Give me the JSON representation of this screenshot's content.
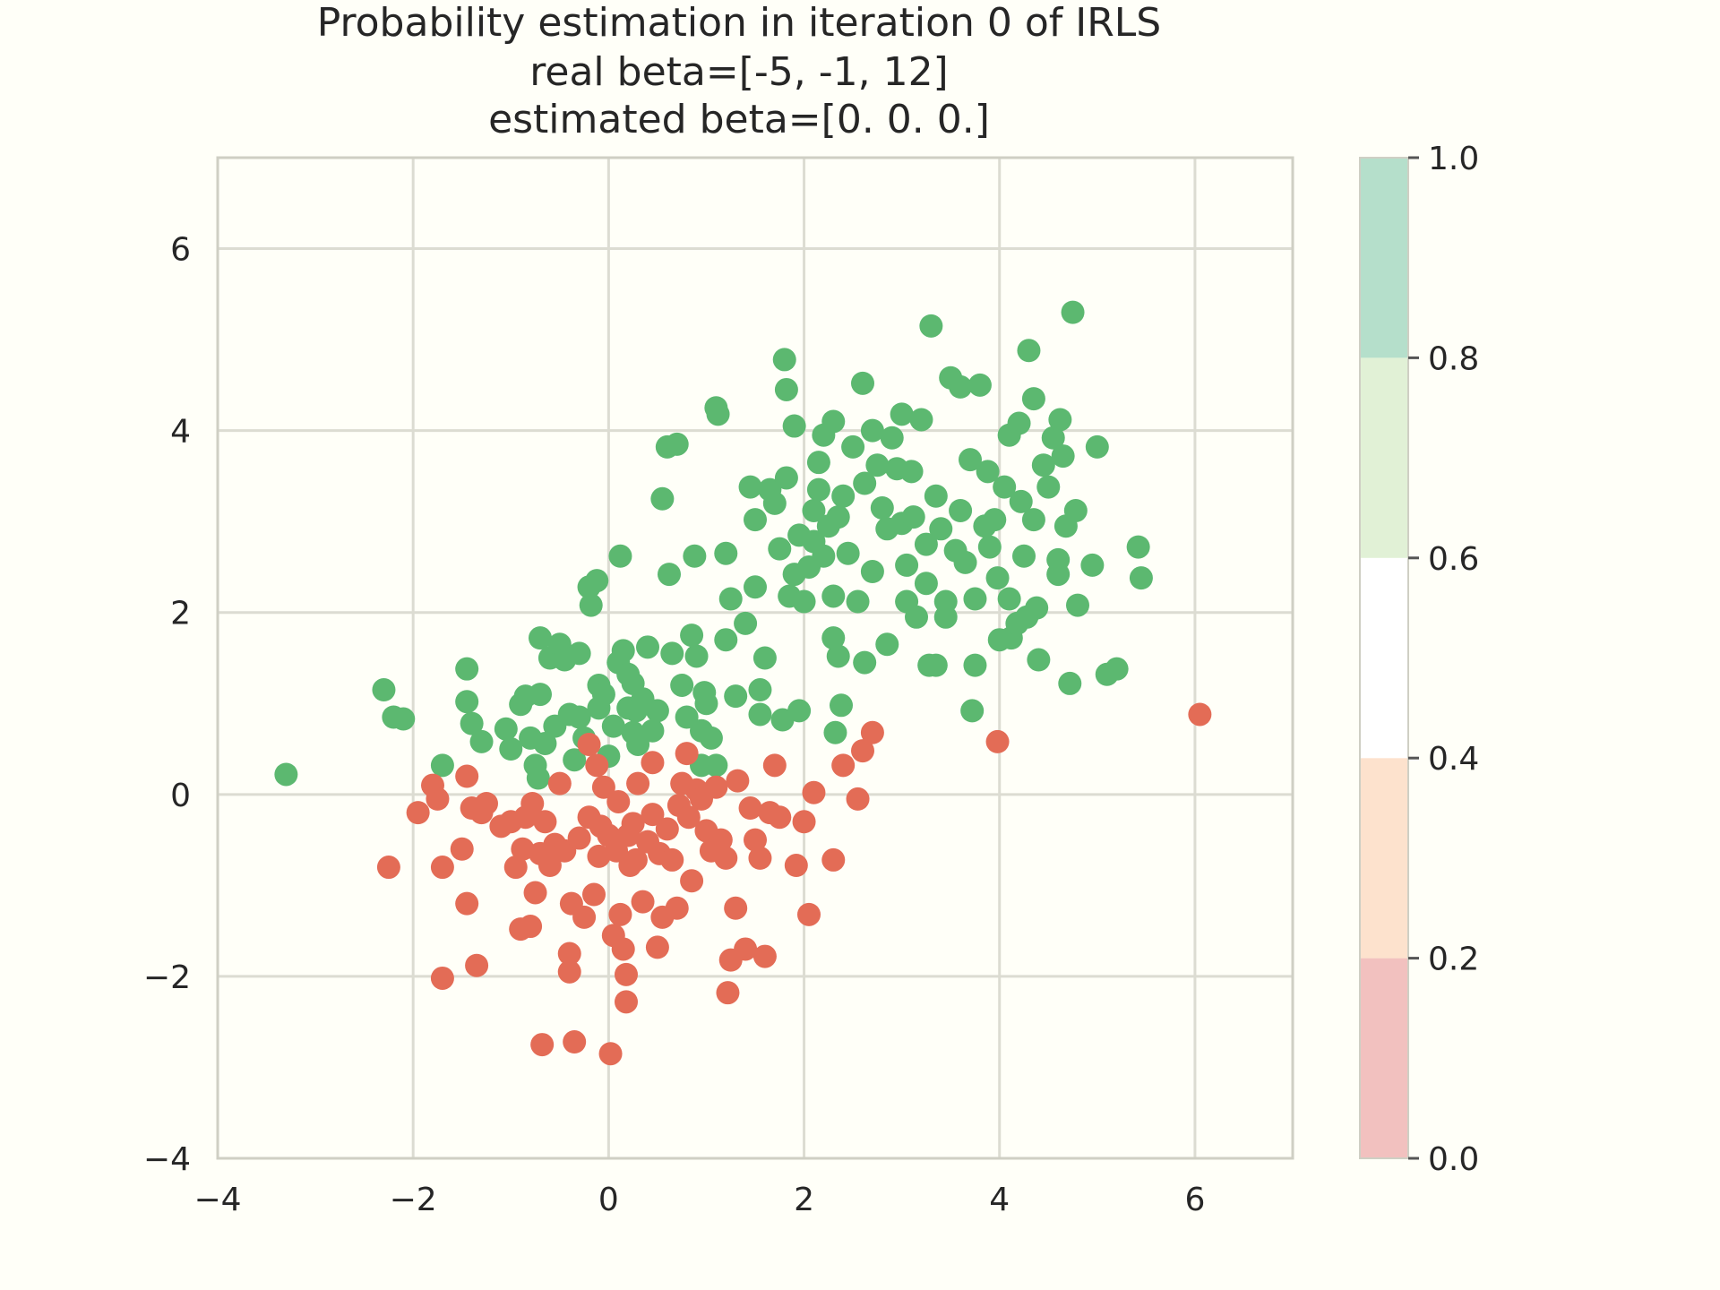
{
  "chart_data": {
    "type": "scatter",
    "title": [
      "Probability estimation in iteration 0 of IRLS",
      "real beta=[-5, -1, 12]",
      "estimated beta=[0. 0. 0.]"
    ],
    "xlabel": "",
    "ylabel": "",
    "xlim": [
      -4,
      7
    ],
    "ylim": [
      -4,
      7
    ],
    "xticks": [
      -4,
      -2,
      0,
      2,
      4,
      6
    ],
    "yticks": [
      -4,
      -2,
      0,
      2,
      4,
      6
    ],
    "xtick_labels": [
      "−4",
      "−2",
      "0",
      "2",
      "4",
      "6"
    ],
    "ytick_labels": [
      "−4",
      "−2",
      "0",
      "2",
      "4",
      "6"
    ],
    "grid": true,
    "colors": {
      "green": "#5cb870",
      "red": "#e36c56"
    },
    "colorbar": {
      "ticks": [
        0.0,
        0.2,
        0.4,
        0.6,
        0.8,
        1.0
      ],
      "tick_labels": [
        "0.0",
        "0.2",
        "0.4",
        "0.6",
        "0.8",
        "1.0"
      ],
      "bands": [
        {
          "from": 0.0,
          "to": 0.2,
          "color": "#f2c1bf"
        },
        {
          "from": 0.2,
          "to": 0.4,
          "color": "#fde2cd"
        },
        {
          "from": 0.4,
          "to": 0.6,
          "color": "#ffffff"
        },
        {
          "from": 0.6,
          "to": 0.8,
          "color": "#e1f1d6"
        },
        {
          "from": 0.8,
          "to": 1.0,
          "color": "#b5dfcb"
        }
      ]
    },
    "series": [
      {
        "color": "#5cb870",
        "points": [
          [
            -3.3,
            0.22
          ],
          [
            -2.3,
            1.15
          ],
          [
            -2.2,
            0.85
          ],
          [
            -2.1,
            0.83
          ],
          [
            -1.7,
            0.32
          ],
          [
            -1.45,
            1.38
          ],
          [
            -1.45,
            1.02
          ],
          [
            -1.4,
            0.78
          ],
          [
            -1.3,
            0.58
          ],
          [
            -1.05,
            0.72
          ],
          [
            -1.0,
            0.5
          ],
          [
            -0.9,
            0.99
          ],
          [
            -0.85,
            1.08
          ],
          [
            -0.8,
            0.62
          ],
          [
            -0.75,
            0.32
          ],
          [
            -0.72,
            0.18
          ],
          [
            -0.7,
            1.72
          ],
          [
            -0.7,
            1.1
          ],
          [
            -0.65,
            0.56
          ],
          [
            -0.6,
            1.5
          ],
          [
            -0.55,
            0.75
          ],
          [
            -0.5,
            1.65
          ],
          [
            -0.45,
            1.48
          ],
          [
            -0.4,
            0.88
          ],
          [
            -0.35,
            0.38
          ],
          [
            -0.3,
            1.55
          ],
          [
            -0.3,
            0.85
          ],
          [
            -0.25,
            0.62
          ],
          [
            -0.2,
            2.28
          ],
          [
            -0.18,
            2.08
          ],
          [
            -0.12,
            2.35
          ],
          [
            -0.1,
            1.2
          ],
          [
            -0.1,
            0.95
          ],
          [
            -0.05,
            1.1
          ],
          [
            0.0,
            0.42
          ],
          [
            0.05,
            0.75
          ],
          [
            0.1,
            1.45
          ],
          [
            0.12,
            2.62
          ],
          [
            0.15,
            1.58
          ],
          [
            0.2,
            1.32
          ],
          [
            0.2,
            0.95
          ],
          [
            0.25,
            0.68
          ],
          [
            0.25,
            1.22
          ],
          [
            0.28,
            0.92
          ],
          [
            0.3,
            0.55
          ],
          [
            0.35,
            1.05
          ],
          [
            0.4,
            1.62
          ],
          [
            0.45,
            0.7
          ],
          [
            0.5,
            0.92
          ],
          [
            0.55,
            3.25
          ],
          [
            0.6,
            3.82
          ],
          [
            0.62,
            2.42
          ],
          [
            0.65,
            1.55
          ],
          [
            0.7,
            3.85
          ],
          [
            0.75,
            1.2
          ],
          [
            0.8,
            0.85
          ],
          [
            0.85,
            1.75
          ],
          [
            0.88,
            2.62
          ],
          [
            0.9,
            1.52
          ],
          [
            0.95,
            0.7
          ],
          [
            0.95,
            0.32
          ],
          [
            0.98,
            1.12
          ],
          [
            1.0,
            1.0
          ],
          [
            1.05,
            0.62
          ],
          [
            1.1,
            0.32
          ],
          [
            1.1,
            4.25
          ],
          [
            1.12,
            4.18
          ],
          [
            1.2,
            2.65
          ],
          [
            1.2,
            1.7
          ],
          [
            1.25,
            2.15
          ],
          [
            1.3,
            1.08
          ],
          [
            1.4,
            1.88
          ],
          [
            1.45,
            3.38
          ],
          [
            1.5,
            3.02
          ],
          [
            1.5,
            2.28
          ],
          [
            1.55,
            1.15
          ],
          [
            1.55,
            0.88
          ],
          [
            1.6,
            1.5
          ],
          [
            1.65,
            3.35
          ],
          [
            1.7,
            3.2
          ],
          [
            1.75,
            2.7
          ],
          [
            1.78,
            0.82
          ],
          [
            1.8,
            4.78
          ],
          [
            1.82,
            4.45
          ],
          [
            1.82,
            3.48
          ],
          [
            1.85,
            2.18
          ],
          [
            1.9,
            4.05
          ],
          [
            1.9,
            2.42
          ],
          [
            1.95,
            2.85
          ],
          [
            1.95,
            0.92
          ],
          [
            2.0,
            2.12
          ],
          [
            2.05,
            2.5
          ],
          [
            2.1,
            3.12
          ],
          [
            2.1,
            2.78
          ],
          [
            2.15,
            3.65
          ],
          [
            2.15,
            3.35
          ],
          [
            2.2,
            3.95
          ],
          [
            2.2,
            2.62
          ],
          [
            2.25,
            2.95
          ],
          [
            2.3,
            4.1
          ],
          [
            2.3,
            2.18
          ],
          [
            2.3,
            1.72
          ],
          [
            2.32,
            0.68
          ],
          [
            2.35,
            3.05
          ],
          [
            2.35,
            1.52
          ],
          [
            2.38,
            0.98
          ],
          [
            2.4,
            3.28
          ],
          [
            2.45,
            2.65
          ],
          [
            2.5,
            3.82
          ],
          [
            2.55,
            2.12
          ],
          [
            2.6,
            4.52
          ],
          [
            2.62,
            3.42
          ],
          [
            2.62,
            1.45
          ],
          [
            2.7,
            4.0
          ],
          [
            2.7,
            2.45
          ],
          [
            2.75,
            3.62
          ],
          [
            2.8,
            3.15
          ],
          [
            2.85,
            2.92
          ],
          [
            2.85,
            1.65
          ],
          [
            2.9,
            3.92
          ],
          [
            2.95,
            3.58
          ],
          [
            3.0,
            4.18
          ],
          [
            3.0,
            2.98
          ],
          [
            3.05,
            2.52
          ],
          [
            3.05,
            2.12
          ],
          [
            3.1,
            3.55
          ],
          [
            3.12,
            3.05
          ],
          [
            3.15,
            1.95
          ],
          [
            3.2,
            4.12
          ],
          [
            3.25,
            2.75
          ],
          [
            3.25,
            2.32
          ],
          [
            3.28,
            1.42
          ],
          [
            3.3,
            5.15
          ],
          [
            3.35,
            3.28
          ],
          [
            3.35,
            1.42
          ],
          [
            3.4,
            2.92
          ],
          [
            3.45,
            2.12
          ],
          [
            3.45,
            1.95
          ],
          [
            3.5,
            4.58
          ],
          [
            3.55,
            2.68
          ],
          [
            3.6,
            4.48
          ],
          [
            3.6,
            3.12
          ],
          [
            3.65,
            2.55
          ],
          [
            3.7,
            3.68
          ],
          [
            3.72,
            0.92
          ],
          [
            3.75,
            2.15
          ],
          [
            3.75,
            1.42
          ],
          [
            3.8,
            4.5
          ],
          [
            3.85,
            2.95
          ],
          [
            3.88,
            3.55
          ],
          [
            3.9,
            2.72
          ],
          [
            3.95,
            3.02
          ],
          [
            3.98,
            2.38
          ],
          [
            4.0,
            1.7
          ],
          [
            4.05,
            3.38
          ],
          [
            4.1,
            3.95
          ],
          [
            4.1,
            2.15
          ],
          [
            4.12,
            1.72
          ],
          [
            4.18,
            1.88
          ],
          [
            4.2,
            4.08
          ],
          [
            4.22,
            3.22
          ],
          [
            4.25,
            2.62
          ],
          [
            4.28,
            1.95
          ],
          [
            4.3,
            4.88
          ],
          [
            4.35,
            4.35
          ],
          [
            4.35,
            3.02
          ],
          [
            4.38,
            2.05
          ],
          [
            4.4,
            1.48
          ],
          [
            4.45,
            3.62
          ],
          [
            4.5,
            3.38
          ],
          [
            4.55,
            3.92
          ],
          [
            4.6,
            2.58
          ],
          [
            4.6,
            2.42
          ],
          [
            4.62,
            4.12
          ],
          [
            4.65,
            3.72
          ],
          [
            4.68,
            2.95
          ],
          [
            4.72,
            1.22
          ],
          [
            4.75,
            5.3
          ],
          [
            4.78,
            3.12
          ],
          [
            4.8,
            2.08
          ],
          [
            4.95,
            2.52
          ],
          [
            5.0,
            3.82
          ],
          [
            5.1,
            1.32
          ],
          [
            5.2,
            1.38
          ],
          [
            5.42,
            2.72
          ],
          [
            5.45,
            2.38
          ]
        ]
      },
      {
        "color": "#e36c56",
        "points": [
          [
            -2.25,
            -0.8
          ],
          [
            -1.95,
            -0.2
          ],
          [
            -1.8,
            0.1
          ],
          [
            -1.75,
            -0.05
          ],
          [
            -1.7,
            -0.8
          ],
          [
            -1.7,
            -2.02
          ],
          [
            -1.5,
            -0.6
          ],
          [
            -1.45,
            -1.2
          ],
          [
            -1.45,
            0.2
          ],
          [
            -1.4,
            -0.15
          ],
          [
            -1.35,
            -1.88
          ],
          [
            -1.3,
            -0.2
          ],
          [
            -1.25,
            -0.1
          ],
          [
            -1.1,
            -0.35
          ],
          [
            -1.0,
            -0.3
          ],
          [
            -0.95,
            -0.8
          ],
          [
            -0.9,
            -1.48
          ],
          [
            -0.88,
            -0.6
          ],
          [
            -0.85,
            -0.25
          ],
          [
            -0.8,
            -1.45
          ],
          [
            -0.78,
            -0.1
          ],
          [
            -0.75,
            -1.08
          ],
          [
            -0.7,
            -0.65
          ],
          [
            -0.68,
            -2.75
          ],
          [
            -0.65,
            -0.3
          ],
          [
            -0.6,
            -0.78
          ],
          [
            -0.55,
            -0.55
          ],
          [
            -0.5,
            0.12
          ],
          [
            -0.45,
            -0.62
          ],
          [
            -0.4,
            -1.75
          ],
          [
            -0.4,
            -1.95
          ],
          [
            -0.38,
            -1.2
          ],
          [
            -0.35,
            -2.72
          ],
          [
            -0.3,
            -0.48
          ],
          [
            -0.25,
            -1.35
          ],
          [
            -0.2,
            -0.25
          ],
          [
            -0.2,
            0.55
          ],
          [
            -0.15,
            -1.1
          ],
          [
            -0.12,
            0.32
          ],
          [
            -0.1,
            -0.68
          ],
          [
            -0.08,
            -0.35
          ],
          [
            -0.05,
            0.08
          ],
          [
            0.0,
            -0.45
          ],
          [
            0.02,
            -2.85
          ],
          [
            0.05,
            -1.55
          ],
          [
            0.08,
            -0.62
          ],
          [
            0.1,
            -0.08
          ],
          [
            0.12,
            -1.32
          ],
          [
            0.15,
            -1.7
          ],
          [
            0.18,
            -1.98
          ],
          [
            0.18,
            -2.28
          ],
          [
            0.2,
            -0.45
          ],
          [
            0.22,
            -0.78
          ],
          [
            0.25,
            -0.32
          ],
          [
            0.28,
            -0.72
          ],
          [
            0.3,
            0.12
          ],
          [
            0.35,
            -1.18
          ],
          [
            0.4,
            -0.52
          ],
          [
            0.45,
            -0.22
          ],
          [
            0.45,
            0.35
          ],
          [
            0.5,
            -1.68
          ],
          [
            0.52,
            -0.65
          ],
          [
            0.55,
            -1.35
          ],
          [
            0.6,
            -0.38
          ],
          [
            0.65,
            -0.72
          ],
          [
            0.7,
            -1.25
          ],
          [
            0.72,
            -0.12
          ],
          [
            0.75,
            0.12
          ],
          [
            0.8,
            0.45
          ],
          [
            0.82,
            -0.25
          ],
          [
            0.85,
            -0.95
          ],
          [
            0.9,
            0.05
          ],
          [
            0.95,
            -0.05
          ],
          [
            1.0,
            -0.4
          ],
          [
            1.05,
            -0.62
          ],
          [
            1.1,
            0.08
          ],
          [
            1.15,
            -0.5
          ],
          [
            1.2,
            -0.7
          ],
          [
            1.22,
            -2.18
          ],
          [
            1.25,
            -1.82
          ],
          [
            1.3,
            -1.25
          ],
          [
            1.32,
            0.15
          ],
          [
            1.4,
            -1.7
          ],
          [
            1.45,
            -0.15
          ],
          [
            1.5,
            -0.5
          ],
          [
            1.55,
            -0.7
          ],
          [
            1.6,
            -1.78
          ],
          [
            1.65,
            -0.2
          ],
          [
            1.7,
            0.32
          ],
          [
            1.75,
            -0.25
          ],
          [
            1.92,
            -0.78
          ],
          [
            2.0,
            -0.3
          ],
          [
            2.05,
            -1.32
          ],
          [
            2.1,
            0.02
          ],
          [
            2.3,
            -0.72
          ],
          [
            2.4,
            0.32
          ],
          [
            2.55,
            -0.05
          ],
          [
            2.6,
            0.48
          ],
          [
            2.7,
            0.68
          ],
          [
            3.98,
            0.58
          ],
          [
            6.05,
            0.88
          ]
        ]
      }
    ]
  }
}
